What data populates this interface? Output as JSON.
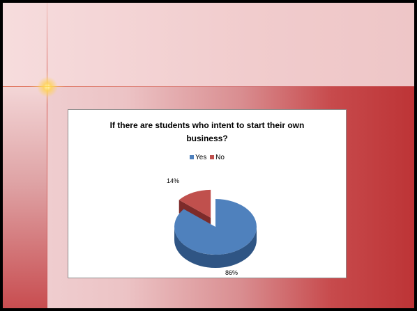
{
  "chart_data": {
    "type": "pie",
    "title_lines": [
      "If there are students who intent to start their own",
      "business?"
    ],
    "categories": [
      "Yes",
      "No"
    ],
    "values": [
      86,
      14
    ],
    "labels": [
      "86%",
      "14%"
    ],
    "colors": [
      "#4f81bd",
      "#c0504d"
    ],
    "side_colors": [
      "#2f5584",
      "#7d2b2a"
    ],
    "legend_position": "top",
    "style": "3d-exploded"
  }
}
